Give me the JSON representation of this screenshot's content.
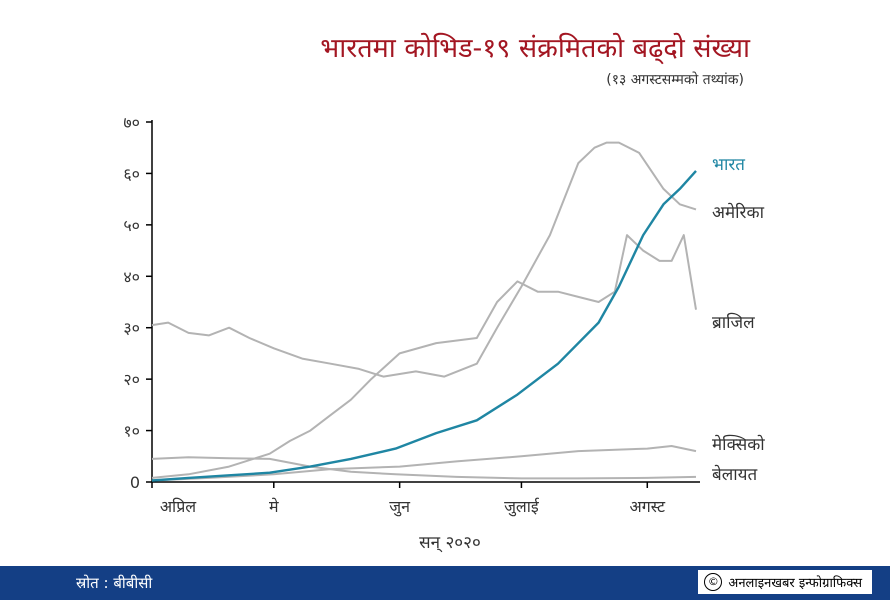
{
  "title": "भारतमा कोभिड-१९ संक्रमितको बढ्दो संख्या",
  "subtitle": "(१३ अगस्टसम्मको तथ्यांक)",
  "footer": {
    "source": "स्रोत : बीबीसी",
    "credit": "अनलाइनखबर इन्फोग्राफिक्स",
    "copyright_symbol": "©"
  },
  "colors": {
    "india": "#1f86a3",
    "others": "#b3b3b3",
    "title": "#a31622",
    "footer_bg": "#143f85"
  },
  "chart_data": {
    "type": "line",
    "title": "भारतमा कोभिड-१९ संक्रमितको बढ्दो संख्या",
    "subtitle": "(१३ अगस्टसम्मको तथ्यांक)",
    "xlabel": "सन् २०२०",
    "ylabel": "",
    "ylim": [
      0,
      70
    ],
    "xlim": [
      "2020-04-01",
      "2020-08-13"
    ],
    "grid": false,
    "yticks": [
      0,
      10,
      20,
      30,
      40,
      50,
      60,
      70
    ],
    "ytick_labels": [
      "0",
      "१०",
      "२०",
      "३०",
      "४०",
      "५०",
      "६०",
      "७०"
    ],
    "xticks": [
      {
        "date": "2020-04-01",
        "label": "अप्रिल"
      },
      {
        "date": "2020-05-01",
        "label": "मे"
      },
      {
        "date": "2020-06-01",
        "label": "जुन"
      },
      {
        "date": "2020-07-01",
        "label": "जुलाई"
      },
      {
        "date": "2020-08-01",
        "label": "अगस्ट"
      }
    ],
    "series": [
      {
        "name": "भारत",
        "highlight": true,
        "points": [
          [
            "2020-04-01",
            0.3
          ],
          [
            "2020-04-10",
            0.8
          ],
          [
            "2020-04-20",
            1.3
          ],
          [
            "2020-04-30",
            1.8
          ],
          [
            "2020-05-10",
            3
          ],
          [
            "2020-05-20",
            4.5
          ],
          [
            "2020-05-31",
            6.5
          ],
          [
            "2020-06-10",
            9.5
          ],
          [
            "2020-06-20",
            12
          ],
          [
            "2020-06-30",
            17
          ],
          [
            "2020-07-10",
            23
          ],
          [
            "2020-07-20",
            31
          ],
          [
            "2020-07-25",
            38
          ],
          [
            "2020-07-31",
            48
          ],
          [
            "2020-08-05",
            54
          ],
          [
            "2020-08-09",
            57
          ],
          [
            "2020-08-13",
            60.5
          ]
        ]
      },
      {
        "name": "अमेरिका",
        "highlight": false,
        "points": [
          [
            "2020-04-01",
            30.5
          ],
          [
            "2020-04-05",
            31
          ],
          [
            "2020-04-10",
            29
          ],
          [
            "2020-04-15",
            28.5
          ],
          [
            "2020-04-20",
            30
          ],
          [
            "2020-04-25",
            28
          ],
          [
            "2020-05-01",
            26
          ],
          [
            "2020-05-08",
            24
          ],
          [
            "2020-05-15",
            23
          ],
          [
            "2020-05-22",
            22
          ],
          [
            "2020-05-28",
            20.5
          ],
          [
            "2020-06-05",
            21.5
          ],
          [
            "2020-06-12",
            20.5
          ],
          [
            "2020-06-20",
            23
          ],
          [
            "2020-06-25",
            30
          ],
          [
            "2020-07-01",
            38
          ],
          [
            "2020-07-08",
            48
          ],
          [
            "2020-07-15",
            62
          ],
          [
            "2020-07-19",
            65
          ],
          [
            "2020-07-22",
            66
          ],
          [
            "2020-07-25",
            66
          ],
          [
            "2020-07-30",
            64
          ],
          [
            "2020-08-05",
            57
          ],
          [
            "2020-08-09",
            54
          ],
          [
            "2020-08-13",
            53
          ]
        ]
      },
      {
        "name": "ब्राजिल",
        "highlight": false,
        "points": [
          [
            "2020-04-01",
            0.8
          ],
          [
            "2020-04-10",
            1.5
          ],
          [
            "2020-04-20",
            3
          ],
          [
            "2020-04-30",
            5.5
          ],
          [
            "2020-05-05",
            8
          ],
          [
            "2020-05-10",
            10
          ],
          [
            "2020-05-15",
            13
          ],
          [
            "2020-05-20",
            16
          ],
          [
            "2020-05-25",
            20
          ],
          [
            "2020-06-01",
            25
          ],
          [
            "2020-06-10",
            27
          ],
          [
            "2020-06-20",
            28
          ],
          [
            "2020-06-25",
            35
          ],
          [
            "2020-06-30",
            39
          ],
          [
            "2020-07-05",
            37
          ],
          [
            "2020-07-10",
            37
          ],
          [
            "2020-07-15",
            36
          ],
          [
            "2020-07-20",
            35
          ],
          [
            "2020-07-24",
            37
          ],
          [
            "2020-07-27",
            48
          ],
          [
            "2020-07-31",
            45
          ],
          [
            "2020-08-04",
            43
          ],
          [
            "2020-08-07",
            43
          ],
          [
            "2020-08-10",
            48
          ],
          [
            "2020-08-13",
            33.5
          ]
        ]
      },
      {
        "name": "मेक्सिको",
        "highlight": false,
        "points": [
          [
            "2020-04-01",
            0.3
          ],
          [
            "2020-04-15",
            0.8
          ],
          [
            "2020-05-01",
            1.5
          ],
          [
            "2020-05-15",
            2.5
          ],
          [
            "2020-06-01",
            3
          ],
          [
            "2020-06-15",
            4
          ],
          [
            "2020-07-01",
            5
          ],
          [
            "2020-07-15",
            6
          ],
          [
            "2020-08-01",
            6.5
          ],
          [
            "2020-08-07",
            7
          ],
          [
            "2020-08-13",
            6
          ]
        ]
      },
      {
        "name": "बेलायत",
        "highlight": false,
        "points": [
          [
            "2020-04-01",
            4.5
          ],
          [
            "2020-04-10",
            4.8
          ],
          [
            "2020-04-20",
            4.6
          ],
          [
            "2020-04-30",
            4.5
          ],
          [
            "2020-05-10",
            3
          ],
          [
            "2020-05-20",
            2
          ],
          [
            "2020-05-31",
            1.5
          ],
          [
            "2020-06-15",
            1
          ],
          [
            "2020-07-01",
            0.7
          ],
          [
            "2020-07-15",
            0.7
          ],
          [
            "2020-08-01",
            0.8
          ],
          [
            "2020-08-13",
            1
          ]
        ]
      }
    ]
  }
}
